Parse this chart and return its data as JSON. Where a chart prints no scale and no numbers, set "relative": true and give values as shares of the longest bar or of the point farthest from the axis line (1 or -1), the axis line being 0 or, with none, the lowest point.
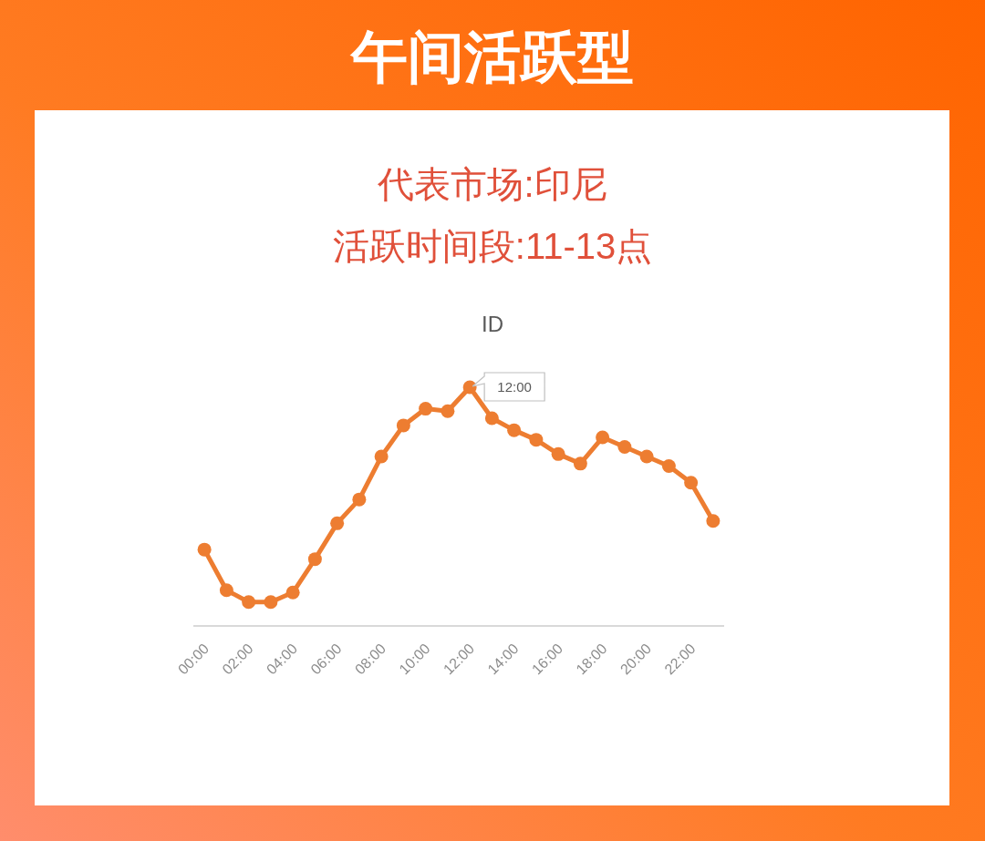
{
  "chart_data": {
    "type": "line",
    "title": "午间活跃型",
    "subtitle": "代表市场:印尼",
    "annotations": [
      "活跃时间段:11-13点",
      "ID",
      {
        "text": "12:00",
        "x": "12:00",
        "y": 1
      }
    ],
    "categories": [
      "00:00",
      null,
      "02:00",
      null,
      "04:00",
      null,
      "06:00",
      null,
      "08:00",
      null,
      "10:00",
      null,
      "12:00",
      null,
      "14:00",
      null,
      "16:00",
      null,
      "18:00",
      null,
      "20:00",
      null,
      "22:00",
      null
    ],
    "relative": true,
    "marker": "circle",
    "line_style": "solid",
    "series": [
      {
        "color": "#ed7d31",
        "values": [
          0.32,
          0.15,
          0.1,
          0.1,
          0.14,
          0.28,
          0.43,
          0.53,
          0.71,
          0.84,
          0.91,
          0.9,
          1,
          0.87,
          0.82,
          0.78,
          0.72,
          0.68,
          0.79,
          0.75,
          0.71,
          0.67,
          0.6,
          0.44
        ]
      }
    ]
  }
}
